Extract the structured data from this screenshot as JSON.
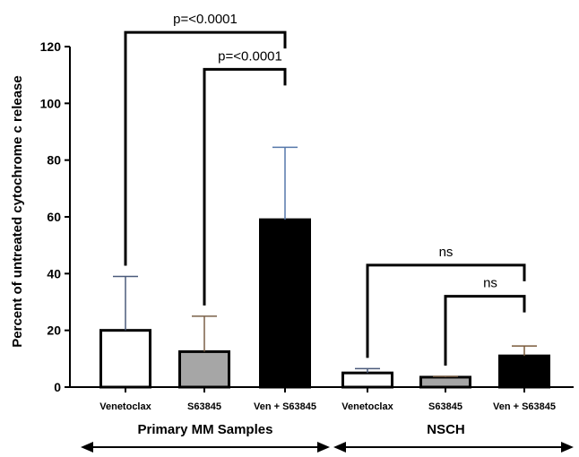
{
  "chart_data": {
    "type": "bar",
    "ylabel": "Percent of untreated cytochrome c release",
    "ylim": [
      0,
      120
    ],
    "yticks": [
      0,
      20,
      40,
      60,
      80,
      100,
      120
    ],
    "categories": [
      "Venetoclax",
      "S63845",
      "Ven + S63845",
      "Venetoclax",
      "S63845",
      "Ven + S63845"
    ],
    "values": [
      20,
      12.5,
      59,
      5,
      3.5,
      11
    ],
    "errors": [
      19,
      12.5,
      25.5,
      1.5,
      0.3,
      3.5
    ],
    "bar_colors": [
      "#ffffff",
      "#a6a6a6",
      "#000000",
      "#ffffff",
      "#a6a6a6",
      "#000000"
    ],
    "error_colors": [
      "#4a5a7a",
      "#7a6048",
      "#5577aa",
      "#4a5a7a",
      "#7a6048",
      "#7a5a3a"
    ],
    "groups": [
      {
        "label": "Primary MM Samples",
        "from": 0,
        "to": 2
      },
      {
        "label": "NSCH",
        "from": 3,
        "to": 5
      }
    ],
    "comparisons": [
      {
        "from": 0,
        "to": 2,
        "text": "p=<0.0001",
        "level": 125
      },
      {
        "from": 1,
        "to": 2,
        "text": "p=<0.0001",
        "level": 112
      },
      {
        "from": 3,
        "to": 5,
        "text": "ns",
        "level": 43
      },
      {
        "from": 4,
        "to": 5,
        "text": "ns",
        "level": 32
      }
    ],
    "grid": false,
    "legend": "none"
  }
}
